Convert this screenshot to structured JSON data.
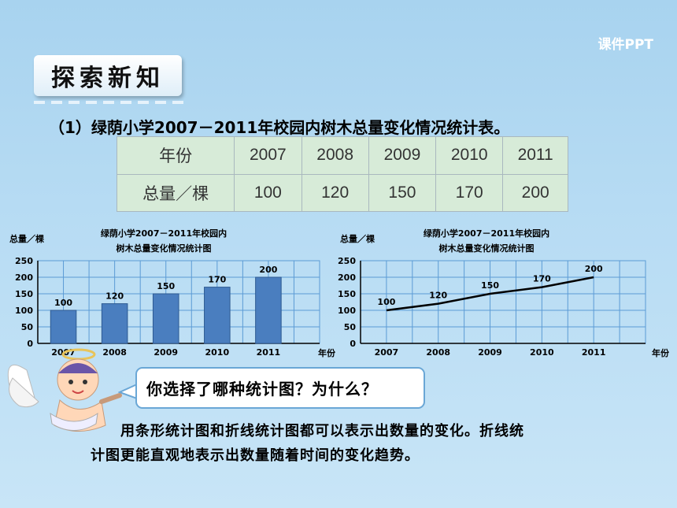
{
  "brand": "课件PPT",
  "section_title": "探索新知",
  "heading": "（1）绿荫小学2007－2011年校园内树木总量变化情况统计表。",
  "table": {
    "row_headers": [
      "年份",
      "总量／棵"
    ],
    "years": [
      "2007",
      "2008",
      "2009",
      "2010",
      "2011"
    ],
    "totals": [
      "100",
      "120",
      "150",
      "170",
      "200"
    ]
  },
  "prompt": "你选择了哪种统计图？为什么？",
  "answer": {
    "line1": "用条形统计图和折线统计图都可以表示出数量的变化。折线统",
    "line2": "计图更能直观地表示出数量随着时间的变化趋势。"
  },
  "colors": {
    "bar": "#4a7ebf",
    "line": "#000000",
    "grid": "#5b9bd5",
    "table_bg": "#d7ebd8"
  },
  "chart_data": [
    {
      "type": "bar",
      "title_lines": [
        "绿荫小学2007－2011年校园内",
        "树木总量变化情况统计图"
      ],
      "ylabel": "总量／棵",
      "xlabel": "年份",
      "categories": [
        "2007",
        "2008",
        "2009",
        "2010",
        "2011"
      ],
      "values": [
        100,
        120,
        150,
        170,
        200
      ],
      "y_ticks": [
        0,
        50,
        100,
        150,
        200,
        250
      ],
      "ylim": [
        0,
        250
      ],
      "grid": true
    },
    {
      "type": "line",
      "title_lines": [
        "绿荫小学2007－2011年校园内",
        "树木总量变化情况统计图"
      ],
      "ylabel": "总量／棵",
      "xlabel": "年份",
      "categories": [
        "2007",
        "2008",
        "2009",
        "2010",
        "2011"
      ],
      "values": [
        100,
        120,
        150,
        170,
        200
      ],
      "y_ticks": [
        0,
        50,
        100,
        150,
        200,
        250
      ],
      "ylim": [
        0,
        250
      ],
      "grid": true
    }
  ]
}
